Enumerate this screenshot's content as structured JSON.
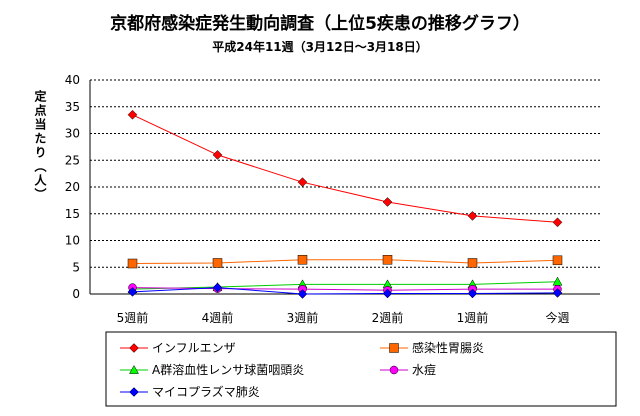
{
  "chart_data": {
    "type": "line",
    "title": "京都府感染症発生動向調査（上位5疾患の推移グラフ）",
    "subtitle": "平成24年11週（3月12日～3月18日）",
    "ylabel": "定点当たり（人）",
    "xlabel": "",
    "categories": [
      "5週前",
      "4週前",
      "3週前",
      "2週前",
      "1週前",
      "今週"
    ],
    "ylim": [
      0,
      40
    ],
    "yticks": [
      "0",
      "5",
      "10",
      "15",
      "20",
      "25",
      "30",
      "35",
      "40"
    ],
    "grid": true,
    "legend_position": "bottom",
    "series": [
      {
        "name": "インフルエンザ",
        "color": "#ff0000",
        "marker": "diamond",
        "marker_color": "#ff0000",
        "values": [
          33.5,
          26.0,
          20.9,
          17.2,
          14.6,
          13.4
        ]
      },
      {
        "name": "感染性胃腸炎",
        "color": "#ff6600",
        "marker": "square",
        "marker_color": "#ff6600",
        "values": [
          5.7,
          5.8,
          6.4,
          6.4,
          5.8,
          6.3
        ]
      },
      {
        "name": "A群溶血性レンサ球菌咽頭炎",
        "color": "#00cc00",
        "marker": "triangle",
        "marker_color": "#00ff00",
        "values": [
          0.9,
          1.3,
          1.8,
          1.8,
          1.8,
          2.3
        ]
      },
      {
        "name": "水痘",
        "color": "#cc00cc",
        "marker": "circle",
        "marker_color": "#ff00ff",
        "values": [
          1.2,
          1.0,
          0.9,
          0.7,
          0.9,
          0.9
        ]
      },
      {
        "name": "マイコプラズマ肺炎",
        "color": "#0000ff",
        "marker": "diamond",
        "marker_color": "#0000ff",
        "values": [
          0.4,
          1.2,
          0.0,
          0.1,
          0.1,
          0.2
        ]
      }
    ]
  }
}
